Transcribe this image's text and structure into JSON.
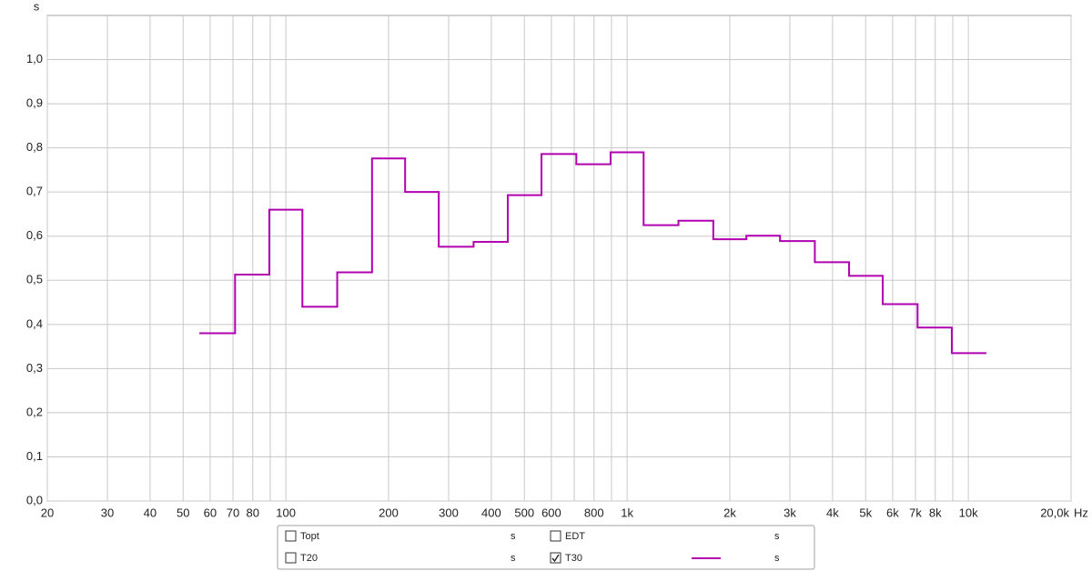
{
  "chart_data": {
    "type": "step",
    "y_unit": "s",
    "x_unit": "Hz",
    "xlog": true,
    "grid": true,
    "xlim": [
      20,
      20000
    ],
    "ylim": [
      0,
      1.1
    ],
    "xticks": [
      20,
      30,
      40,
      50,
      60,
      70,
      80,
      100,
      200,
      300,
      400,
      500,
      600,
      800,
      {
        "value": 1000,
        "label": "1k"
      },
      {
        "value": 2000,
        "label": "2k"
      },
      {
        "value": 3000,
        "label": "3k"
      },
      {
        "value": 4000,
        "label": "4k"
      },
      {
        "value": 5000,
        "label": "5k"
      },
      {
        "value": 6000,
        "label": "6k"
      },
      {
        "value": 7000,
        "label": "7k"
      },
      {
        "value": 8000,
        "label": "8k"
      },
      {
        "value": 10000,
        "label": "10k"
      },
      {
        "value": 20000,
        "label": "20,0k"
      }
    ],
    "xgrid_minor": [
      90,
      700,
      900,
      9000
    ],
    "yticks": [
      {
        "value": 0,
        "label": "0,0"
      },
      {
        "value": 0.1,
        "label": "0,1"
      },
      {
        "value": 0.2,
        "label": "0,2"
      },
      {
        "value": 0.3,
        "label": "0,3"
      },
      {
        "value": 0.4,
        "label": "0,4"
      },
      {
        "value": 0.5,
        "label": "0,5"
      },
      {
        "value": 0.6,
        "label": "0,6"
      },
      {
        "value": 0.7,
        "label": "0,7"
      },
      {
        "value": 0.8,
        "label": "0,8"
      },
      {
        "value": 0.9,
        "label": "0,9"
      },
      {
        "value": 1.0,
        "label": "1,0"
      }
    ],
    "series": [
      {
        "name": "T30",
        "unit": "s",
        "checked": true,
        "color": "#b000b0",
        "x": [
          63,
          80,
          100,
          125,
          160,
          200,
          250,
          315,
          400,
          500,
          630,
          800,
          1000,
          1250,
          1600,
          2000,
          2500,
          3150,
          4000,
          5000,
          6300,
          8000,
          10000
        ],
        "values": [
          0.38,
          0.513,
          0.66,
          0.44,
          0.518,
          0.776,
          0.7,
          0.576,
          0.587,
          0.693,
          0.786,
          0.763,
          0.79,
          0.625,
          0.635,
          0.593,
          0.601,
          0.589,
          0.541,
          0.51,
          0.446,
          0.393,
          0.335
        ]
      }
    ],
    "legend": [
      {
        "name": "Topt",
        "unit": "s",
        "checked": false,
        "color": "#008000"
      },
      {
        "name": "EDT",
        "unit": "s",
        "checked": false,
        "color": "#119999"
      },
      {
        "name": "T20",
        "unit": "s",
        "checked": false,
        "color": "#000000"
      }
    ]
  }
}
